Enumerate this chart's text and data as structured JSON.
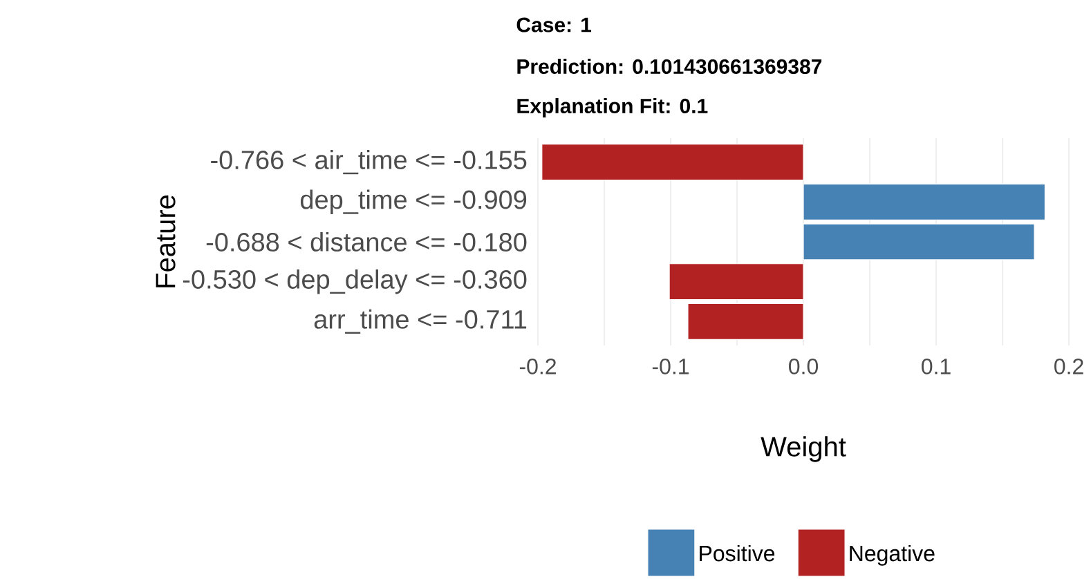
{
  "chart_data": {
    "type": "bar",
    "orientation": "horizontal",
    "title": "Case: 1",
    "subtitle": "Prediction: 0.101430661369387",
    "annotations": [
      "Explanation Fit: 0.1"
    ],
    "xlabel": "Weight",
    "ylabel": "Feature",
    "categories": [
      "-0.766 < air_time <= -0.155",
      "dep_time <= -0.909",
      "-0.688 < distance <= -0.180",
      "-0.530 < dep_delay <= -0.360",
      "arr_time <= -0.711"
    ],
    "series": [
      {
        "name": "Positive",
        "color": "#4682b4",
        "values": [
          null,
          0.182,
          0.174,
          null,
          null
        ]
      },
      {
        "name": "Negative",
        "color": "#b22222",
        "values": [
          -0.197,
          null,
          null,
          -0.101,
          -0.087
        ]
      }
    ],
    "xlim": [
      -0.2,
      0.2
    ],
    "xticks": [
      -0.2,
      {
        "value": -0.15,
        "label": null
      },
      -0.1,
      {
        "value": -0.05,
        "label": null
      },
      {
        "value": 0,
        "label": "0.0"
      },
      {
        "value": 0.05,
        "label": null
      },
      0.1,
      {
        "value": 0.15,
        "label": null
      },
      0.2
    ],
    "grid": "x",
    "legend": "bottom"
  }
}
